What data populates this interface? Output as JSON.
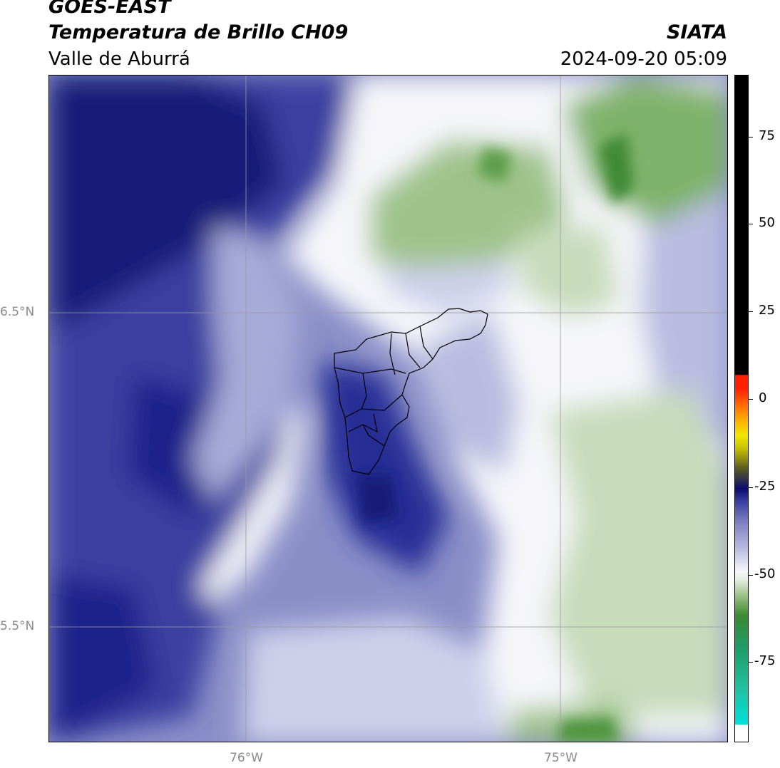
{
  "header": {
    "satellite": "GOES-EAST",
    "product": "Temperatura de Brillo CH09",
    "region": "Valle de Aburrá",
    "organization": "SIATA",
    "datetime": "2024-09-20 05:09"
  },
  "map": {
    "lat_labels": [
      "6.5°N",
      "5.5°N"
    ],
    "lon_labels": [
      "76°W",
      "75°W"
    ],
    "colors": {
      "deep_cold": "#151a78",
      "cold": "#3a40a0",
      "mid": "#8a8fc8",
      "light": "#cdd0ea",
      "neutral": "#f6f6fa",
      "green_light": "#dbe8d2",
      "green_mid": "#9ec38a",
      "green_dark": "#3f8a34",
      "boundary": "#000000",
      "gridline": "#9a9a9a"
    }
  },
  "colorbar": {
    "ticks": [
      "75",
      "50",
      "25",
      "0",
      "-25",
      "-50",
      "-75"
    ],
    "colors": [
      "#ffffff",
      "#00e0d8",
      "#1f9d6a",
      "#3b8a2e",
      "#e8f0e4",
      "#7c80c0",
      "#0c0c6e",
      "#5a5a20",
      "#f2e800",
      "#ff9a00",
      "#ff2000",
      "#000000"
    ]
  }
}
